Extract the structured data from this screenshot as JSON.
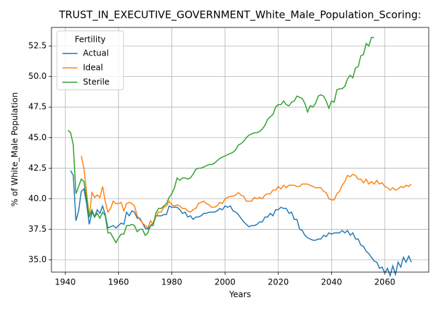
{
  "chart_data": {
    "type": "line",
    "title": "TRUST_IN_EXECUTIVE_GOVERNMENT_White_Male_Population_Scoring:",
    "x_label": "Years",
    "y_label": "% of White_Male Population",
    "legend_title": "Fertility",
    "legend": "upper left",
    "grid": true,
    "xlim": [
      1934.8,
      2076.5
    ],
    "ylim": [
      33.99,
      54.02
    ],
    "xticks": [
      1940,
      1960,
      1980,
      2000,
      2020,
      2040,
      2060
    ],
    "yticks": [
      {
        "value": 35,
        "label": "35.0"
      },
      37.5,
      {
        "value": 40,
        "label": "40.0"
      },
      42.5,
      {
        "value": 45,
        "label": "45.0"
      },
      47.5,
      {
        "value": 50,
        "label": "50.0"
      },
      52.5
    ],
    "x": [
      1941,
      1942,
      1943,
      1944,
      1945,
      1946,
      1947,
      1948,
      1949,
      1950,
      1951,
      1952,
      1953,
      1954,
      1955,
      1956,
      1957,
      1958,
      1959,
      1960,
      1961,
      1962,
      1963,
      1964,
      1965,
      1966,
      1967,
      1968,
      1969,
      1970,
      1971,
      1972,
      1973,
      1974,
      1975,
      1976,
      1977,
      1978,
      1979,
      1980,
      1981,
      1982,
      1983,
      1984,
      1985,
      1986,
      1987,
      1988,
      1989,
      1990,
      1991,
      1992,
      1993,
      1994,
      1995,
      1996,
      1997,
      1998,
      1999,
      2000,
      2001,
      2002,
      2003,
      2004,
      2005,
      2006,
      2007,
      2008,
      2009,
      2010,
      2011,
      2012,
      2013,
      2014,
      2015,
      2016,
      2017,
      2018,
      2019,
      2020,
      2021,
      2022,
      2023,
      2024,
      2025,
      2026,
      2027,
      2028,
      2029,
      2030,
      2031,
      2032,
      2033,
      2034,
      2035,
      2036,
      2037,
      2038,
      2039,
      2040,
      2041,
      2042,
      2043,
      2044,
      2045,
      2046,
      2047,
      2048,
      2049,
      2050,
      2051,
      2052,
      2053,
      2054,
      2055,
      2056,
      2057,
      2058,
      2059,
      2060,
      2061,
      2062,
      2063,
      2064,
      2065,
      2066,
      2067,
      2068,
      2069,
      2070
    ],
    "series": [
      {
        "name": "Actual",
        "color": "#1f77b4",
        "values": [
          null,
          42.3,
          41.9,
          38.2,
          39.0,
          40.6,
          40.8,
          39.6,
          37.9,
          38.9,
          38.5,
          39.1,
          38.8,
          39.4,
          38.7,
          37.6,
          37.7,
          37.8,
          37.6,
          37.8,
          38.0,
          37.9,
          38.9,
          38.6,
          39.0,
          38.9,
          38.4,
          38.4,
          38.0,
          37.6,
          37.5,
          37.8,
          38.0,
          38.6,
          38.6,
          38.6,
          38.7,
          38.7,
          39.4,
          39.3,
          39.3,
          39.3,
          39.1,
          38.8,
          38.9,
          38.5,
          38.6,
          38.3,
          38.5,
          38.5,
          38.6,
          38.8,
          38.8,
          38.9,
          38.9,
          38.9,
          39.0,
          39.2,
          39.1,
          39.4,
          39.3,
          39.4,
          39.0,
          38.9,
          38.7,
          38.4,
          38.1,
          37.9,
          37.7,
          37.8,
          37.8,
          37.9,
          38.1,
          38.1,
          38.5,
          38.5,
          38.8,
          38.6,
          39.1,
          39.1,
          39.3,
          39.2,
          39.2,
          38.8,
          38.9,
          38.3,
          38.3,
          37.5,
          37.4,
          37.0,
          36.8,
          36.7,
          36.6,
          36.6,
          36.7,
          36.7,
          37.0,
          36.9,
          37.2,
          37.1,
          37.2,
          37.2,
          37.2,
          37.4,
          37.2,
          37.4,
          37.0,
          37.2,
          36.7,
          36.7,
          36.2,
          36.1,
          35.7,
          35.5,
          35.2,
          34.9,
          34.8,
          34.3,
          34.4,
          33.9,
          34.3,
          33.7,
          34.5,
          33.8,
          34.8,
          34.4,
          35.2,
          34.8,
          35.3,
          34.8
        ]
      },
      {
        "name": "Ideal",
        "color": "#ff7f0e",
        "values": [
          null,
          null,
          null,
          null,
          null,
          43.5,
          42.5,
          40.5,
          38.5,
          40.5,
          40.1,
          40.3,
          40.1,
          41.0,
          39.8,
          38.9,
          39.2,
          39.8,
          39.6,
          39.6,
          39.7,
          39.0,
          39.6,
          39.7,
          39.6,
          39.4,
          38.6,
          38.3,
          38.0,
          37.8,
          37.6,
          38.2,
          37.9,
          38.5,
          38.9,
          38.9,
          39.3,
          39.4,
          39.8,
          39.5,
          39.4,
          39.5,
          39.4,
          39.2,
          39.2,
          39.0,
          38.9,
          39.1,
          39.2,
          39.6,
          39.7,
          39.8,
          39.6,
          39.5,
          39.3,
          39.3,
          39.4,
          39.7,
          39.6,
          40.0,
          40.1,
          40.2,
          40.2,
          40.3,
          40.5,
          40.3,
          40.2,
          39.8,
          39.8,
          39.8,
          40.1,
          40.0,
          40.1,
          40.0,
          40.3,
          40.4,
          40.4,
          40.7,
          40.7,
          41.0,
          40.8,
          41.1,
          40.9,
          41.1,
          41.1,
          41.1,
          41.0,
          41.0,
          41.2,
          41.2,
          41.2,
          41.1,
          41.0,
          40.9,
          40.9,
          40.9,
          40.6,
          40.5,
          40.0,
          39.9,
          39.9,
          40.4,
          40.6,
          41.1,
          41.4,
          41.9,
          41.8,
          42.0,
          41.9,
          41.6,
          41.6,
          41.3,
          41.6,
          41.2,
          41.4,
          41.2,
          41.5,
          41.2,
          41.3,
          41.0,
          40.9,
          40.7,
          40.9,
          40.7,
          40.8,
          41.0,
          40.9,
          41.1,
          41.0,
          41.2
        ]
      },
      {
        "name": "Sterile",
        "color": "#2ca02c",
        "values": [
          45.6,
          45.4,
          44.4,
          40.4,
          41.0,
          41.6,
          41.4,
          40.0,
          38.5,
          39.1,
          38.5,
          38.8,
          38.4,
          38.9,
          38.6,
          37.2,
          37.2,
          36.8,
          36.4,
          36.8,
          37.1,
          37.1,
          37.8,
          37.8,
          37.9,
          37.8,
          37.3,
          37.5,
          37.5,
          37.0,
          37.2,
          37.8,
          37.8,
          38.8,
          39.2,
          39.2,
          39.4,
          39.6,
          40.1,
          40.4,
          40.9,
          41.7,
          41.5,
          41.7,
          41.7,
          41.6,
          41.7,
          42.0,
          42.4,
          42.5,
          42.5,
          42.6,
          42.7,
          42.8,
          42.8,
          42.9,
          43.1,
          43.3,
          43.4,
          43.5,
          43.6,
          43.7,
          43.8,
          44.0,
          44.4,
          44.5,
          44.7,
          45.0,
          45.2,
          45.3,
          45.4,
          45.4,
          45.5,
          45.7,
          46.0,
          46.5,
          46.7,
          46.9,
          47.5,
          47.7,
          47.7,
          48.0,
          47.7,
          47.6,
          47.9,
          48.0,
          48.4,
          48.3,
          48.2,
          47.8,
          47.1,
          47.6,
          47.5,
          47.8,
          48.4,
          48.5,
          48.4,
          48.0,
          47.4,
          48.0,
          47.9,
          48.9,
          49.0,
          49.0,
          49.2,
          49.8,
          50.1,
          49.9,
          50.7,
          50.8,
          51.7,
          51.8,
          52.7,
          52.5,
          53.2,
          53.2,
          null,
          null,
          null,
          null,
          null,
          null,
          null,
          null,
          null,
          null,
          null,
          null,
          null,
          null
        ]
      }
    ]
  }
}
